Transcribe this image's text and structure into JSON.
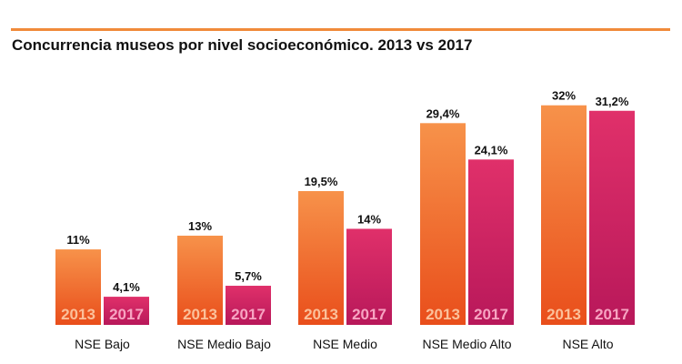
{
  "chart_data": {
    "type": "bar",
    "title": "Concurrencia museos por nivel socioeconómico. 2013 vs 2017",
    "categories": [
      "NSE Bajo",
      "NSE Medio Bajo",
      "NSE Medio",
      "NSE Medio Alto",
      "NSE Alto"
    ],
    "series": [
      {
        "name": "2013",
        "values": [
          11,
          13,
          19.5,
          29.4,
          32
        ],
        "labels": [
          "11%",
          "13%",
          "19,5%",
          "29,4%",
          "32%"
        ],
        "color_top": "#f7924a",
        "color_bottom": "#e94e1b",
        "year_text_color": "#fbc09a"
      },
      {
        "name": "2017",
        "values": [
          4.1,
          5.7,
          14,
          24.1,
          31.2
        ],
        "labels": [
          "4,1%",
          "5,7%",
          "14%",
          "24,1%",
          "31,2%"
        ],
        "color_top": "#e0306a",
        "color_bottom": "#b8185a",
        "year_text_color": "#f7a4c2"
      }
    ],
    "unit": "%",
    "ylim": [
      0,
      35
    ],
    "grid": false,
    "legend": "none"
  },
  "colors": {
    "accent_rule": "#f08a3a"
  }
}
